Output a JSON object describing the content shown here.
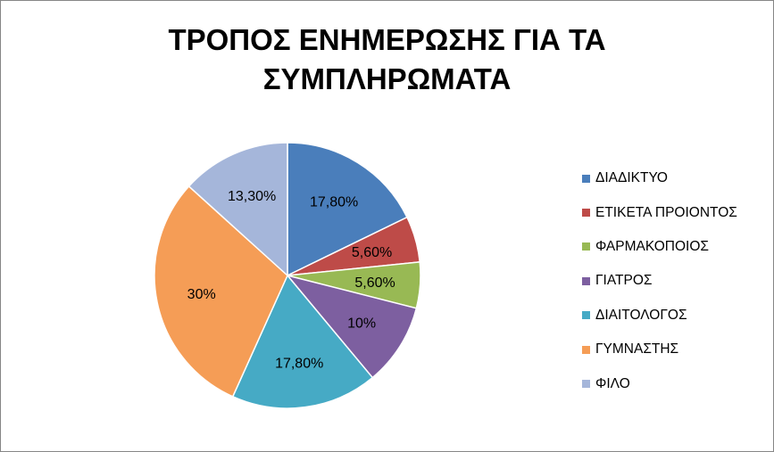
{
  "chart_data": {
    "type": "pie",
    "title_lines": [
      "ΤΡΟΠΟΣ ΕΝΗΜΕΡΩΣΗΣ ΓΙΑ ΤΑ",
      "ΣΥΜΠΛΗΡΩΜΑΤΑ"
    ],
    "legend_position": "right",
    "slices": [
      {
        "label": "ΔΙΑΔΙΚΤΥΟ",
        "value": 17.8,
        "data_label": "17,80%",
        "color": "#4a7ebb"
      },
      {
        "label": "ΕΤΙΚΕΤΑ ΠΡΟΙΟΝΤΟΣ",
        "value": 5.6,
        "data_label": "5,60%",
        "color": "#be4b48"
      },
      {
        "label": "ΦΑΡΜΑΚΟΠΟΙΟΣ",
        "value": 5.6,
        "data_label": "5,60%",
        "color": "#98b954"
      },
      {
        "label": "ΓΙΑΤΡΟΣ",
        "value": 10,
        "data_label": "10%",
        "color": "#7d5fa0"
      },
      {
        "label": "ΔΙΑΙΤΟΛΟΓΟΣ",
        "value": 17.8,
        "data_label": "17,80%",
        "color": "#46aac5"
      },
      {
        "label": "ΓΥΜΝΑΣΤΗΣ",
        "value": 30,
        "data_label": "30%",
        "color": "#f59d56"
      },
      {
        "label": "ΦΙΛΟ",
        "value": 13.3,
        "data_label": "13,30%",
        "color": "#a5b6da"
      }
    ]
  }
}
